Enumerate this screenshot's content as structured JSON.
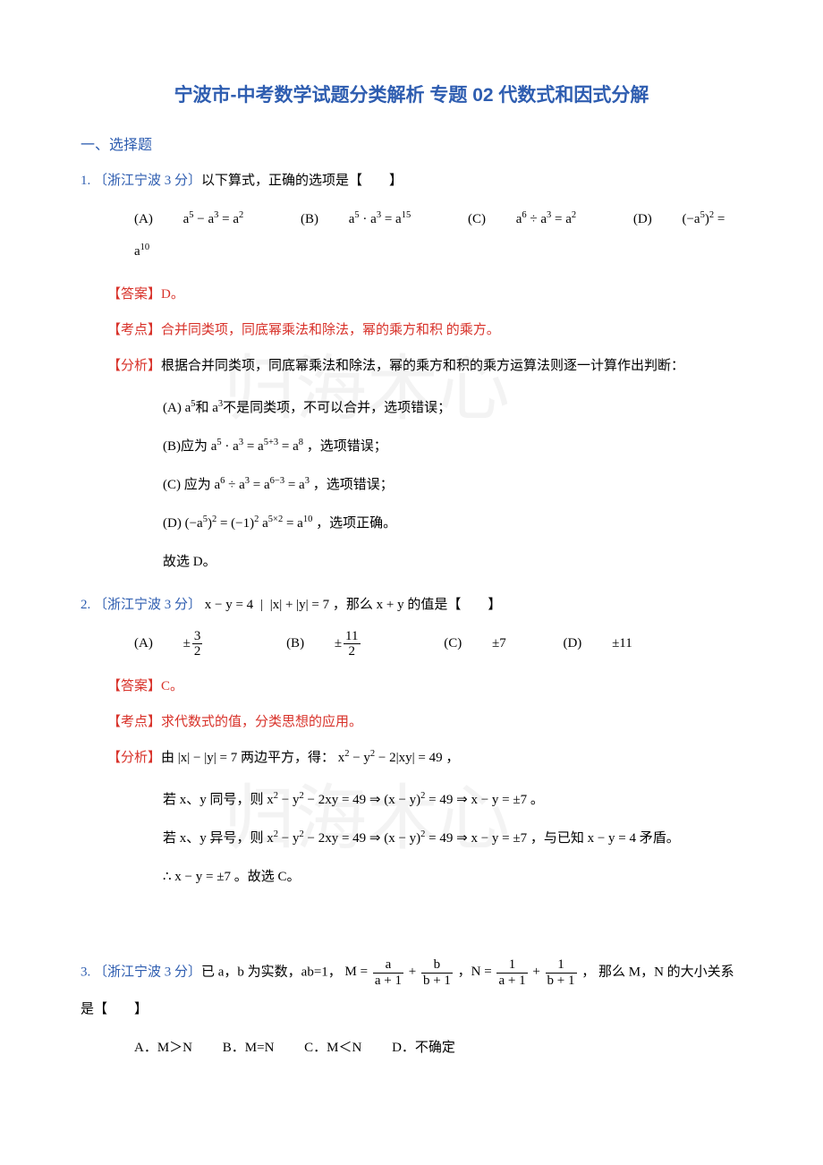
{
  "colors": {
    "title": "#2e5db0",
    "blue": "#2e5db0",
    "red": "#d8322a",
    "text": "#000000",
    "watermark": "rgba(200,200,200,0.22)"
  },
  "title": "宁波市-中考数学试题分类解析 专题 02 代数式和因式分解",
  "section1": "一、选择题",
  "q1": {
    "num": "1.",
    "source": "〔浙江宁波 3 分〕",
    "stem": "以下算式，正确的选项是【　　】",
    "optA_label": "(A)",
    "optA": "a<sup>5</sup> − a<sup>3</sup> = a<sup>2</sup>",
    "optB_label": "(B)",
    "optB": "a<sup>5</sup> · a<sup>3</sup> = a<sup>15</sup>",
    "optC_label": "(C)",
    "optC": "a<sup>6</sup> ÷ a<sup>3</sup> = a<sup>2</sup>",
    "optD_label": "(D)",
    "optD": "(−a<sup>5</sup>)<sup>2</sup> = a<sup>10</sup>",
    "ans_label": "【答案】",
    "ans": "D。",
    "kd_label": "【考点】",
    "kd": "合并同类项，同底幂乘法和除法，幂的乘方和积 的乘方。",
    "fx_label": "【分析】",
    "fx": "根据合并同类项，同底幂乘法和除法，幂的乘方和积的乘方运算法则逐一计算作出判断：",
    "lineA": "(A) a<sup>5</sup>和 a<sup>3</sup>不是同类项，不可以合并，选项错误；",
    "lineB": "(B)应为 a<sup>5</sup> · a<sup>3</sup> = a<sup>5+3</sup> = a<sup>8</sup> ，选项错误；",
    "lineC": "(C) 应为 a<sup>6</sup> ÷ a<sup>3</sup> = a<sup>6−3</sup> = a<sup>3</sup> ，选项错误；",
    "lineD": "(D) (−a<sup>5</sup>)<sup>2</sup> = (−1)<sup>2</sup> a<sup>5×2</sup> = a<sup>10</sup> ，选项正确。",
    "lineE": "故选 D。"
  },
  "q2": {
    "num": "2.",
    "source": "〔浙江宁波 3 分〕",
    "stem_pre": " x − y = 4",
    "stem_mid": "|x| + |y| = 7",
    "stem_post": "，那么 x + y 的值是【　　】",
    "optA_label": "(A)",
    "optA_num": "3",
    "optA_den": "2",
    "optB_label": "(B)",
    "optB_num": "11",
    "optB_den": "2",
    "optC_label": "(C)",
    "optC": "±7",
    "optD_label": "(D)",
    "optD": "±11",
    "ans_label": "【答案】",
    "ans": "C。",
    "kd_label": "【考点】",
    "kd": "求代数式的值，分类思想的应用。",
    "fx_label": "【分析】",
    "fx": "由 |x| − |y| = 7 两边平方，得： x<sup>2</sup> − y<sup>2</sup> − 2|xy| = 49 ，",
    "lineA": "若 x、y 同号，则 x<sup>2</sup> − y<sup>2</sup> − 2xy = 49 ⇒ (x − y)<sup>2</sup> = 49 ⇒ x − y = ±7 。",
    "lineB": "若 x、y 异号，则 x<sup>2</sup> − y<sup>2</sup> − 2xy = 49 ⇒ (x − y)<sup>2</sup> = 49 ⇒ x − y = ±7 ，与已知 x − y = 4 矛盾。",
    "lineC": "∴ x − y = ±7 。故选 C。"
  },
  "q3": {
    "num": "3.",
    "source": "〔浙江宁波 3 分〕",
    "stem_pre": "已 a，b 为实数，ab=1，",
    "M_eq": "M = ",
    "M_n1": "a",
    "M_d1": "a + 1",
    "M_n2": "b",
    "M_d2": "b + 1",
    "N_eq": "，N = ",
    "N_n1": "1",
    "N_d1": "a + 1",
    "N_n2": "1",
    "N_d2": "b + 1",
    "stem_post": " ， 那么 M，N 的大小关系",
    "stem_line2": "是【　　】",
    "optA": "A．M＞N",
    "optB": "B．M=N",
    "optC": "C．M＜N",
    "optD": "D．不确定"
  },
  "watermarks": {
    "w1": "归海木心",
    "w2": "归海木心"
  }
}
